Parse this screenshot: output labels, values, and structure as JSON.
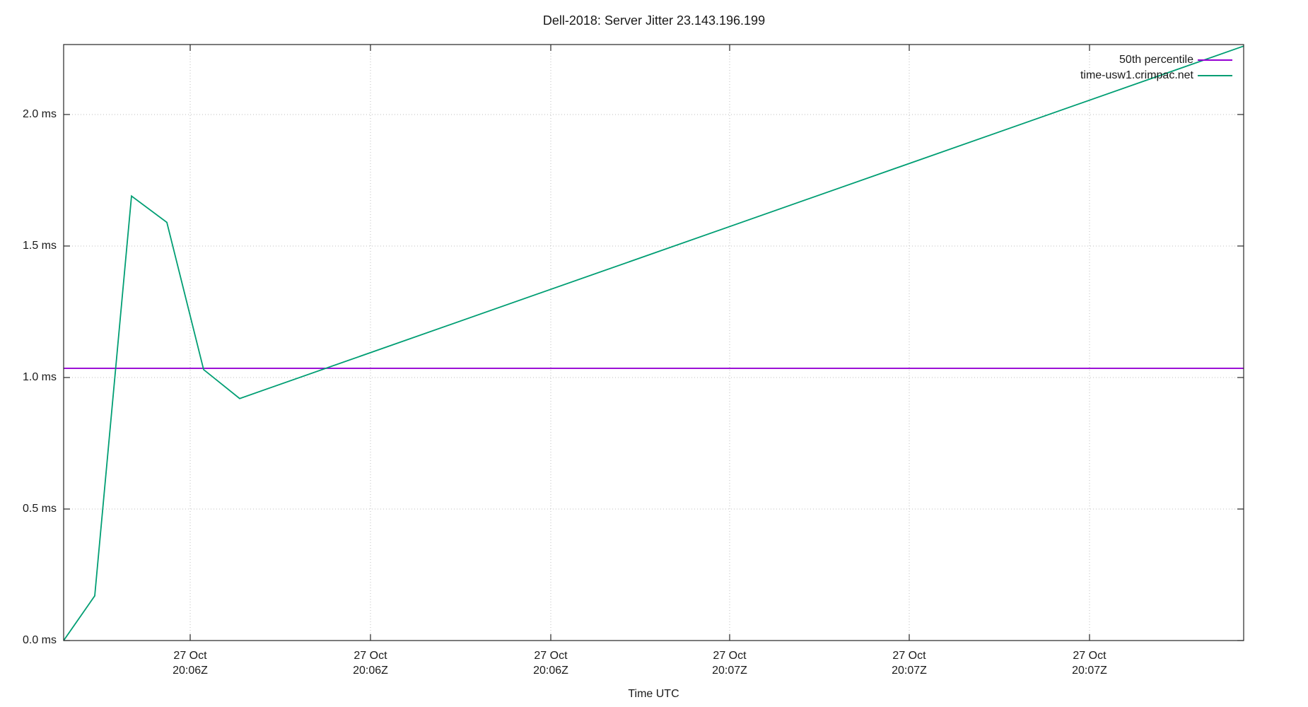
{
  "chart_data": {
    "type": "line",
    "title": "Dell-2018: Server Jitter 23.143.196.199",
    "xlabel": "Time UTC",
    "ylabel": "",
    "ylim": [
      0,
      2.266
    ],
    "grid": true,
    "legend_position": "top-right-inside",
    "y_ticks": [
      {
        "value": 0.0,
        "label": "0.0 ms"
      },
      {
        "value": 0.5,
        "label": "0.5 ms"
      },
      {
        "value": 1.0,
        "label": "1.0 ms"
      },
      {
        "value": 1.5,
        "label": "1.5 ms"
      },
      {
        "value": 2.0,
        "label": "2.0 ms"
      }
    ],
    "x_ticks": [
      {
        "frac": 0.10725,
        "line1": "27 Oct",
        "line2": "20:06Z"
      },
      {
        "frac": 0.26003,
        "line1": "27 Oct",
        "line2": "20:06Z"
      },
      {
        "frac": 0.41282,
        "line1": "27 Oct",
        "line2": "20:06Z"
      },
      {
        "frac": 0.56441,
        "line1": "27 Oct",
        "line2": "20:07Z"
      },
      {
        "frac": 0.7166,
        "line1": "27 Oct",
        "line2": "20:07Z"
      },
      {
        "frac": 0.86938,
        "line1": "27 Oct",
        "line2": "20:07Z"
      }
    ],
    "series": [
      {
        "name": "50th percentile",
        "color": "#9400d3",
        "style": "hline",
        "value_ms": 1.035
      },
      {
        "name": "time-usw1.crimpac.net",
        "color": "#009e73",
        "style": "line",
        "points": [
          {
            "x_frac": 0.0,
            "ms": 0.0
          },
          {
            "x_frac": 0.02636,
            "ms": 0.17
          },
          {
            "x_frac": 0.05752,
            "ms": 1.69
          },
          {
            "x_frac": 0.08748,
            "ms": 1.59
          },
          {
            "x_frac": 0.11863,
            "ms": 1.03
          },
          {
            "x_frac": 0.14919,
            "ms": 0.92
          },
          {
            "x_frac": 1.0,
            "ms": 2.26
          }
        ]
      }
    ],
    "colors": {
      "border": "#262626",
      "grid": "#bdbdbd",
      "text": "#1a1a1a",
      "background": "#ffffff"
    }
  }
}
